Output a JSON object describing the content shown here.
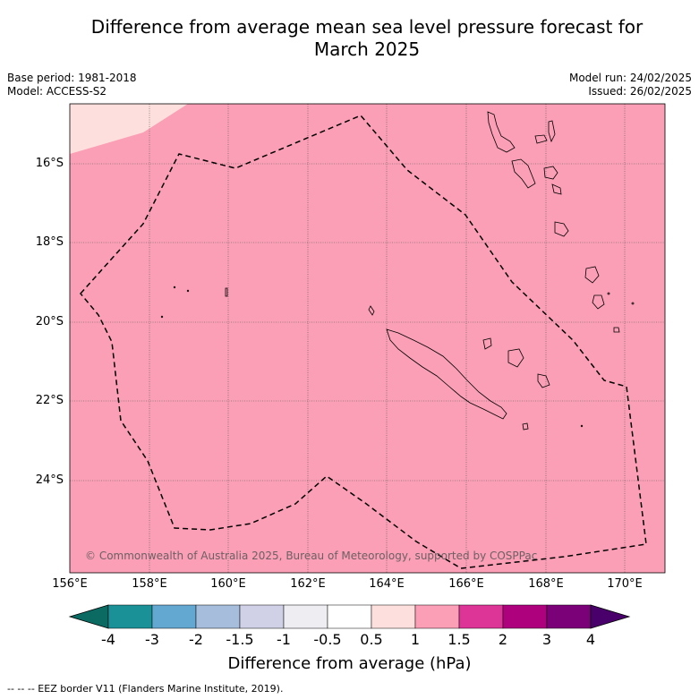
{
  "title_line1": "Difference from average mean sea level pressure forecast for",
  "title_line2": "March 2025",
  "base_period": "Base period: 1981-2018",
  "model": "Model: ACCESS-S2",
  "model_run": "Model run: 24/02/2025",
  "issued": "Issued: 26/02/2025",
  "lat_labels": [
    "16°S",
    "18°S",
    "20°S",
    "22°S",
    "24°S"
  ],
  "lon_labels": [
    "156°E",
    "158°E",
    "160°E",
    "162°E",
    "164°E",
    "166°E",
    "168°E",
    "170°E"
  ],
  "copyright": "© Commonwealth of Australia 2025, Bureau of Meteorology, supported by COSPPac",
  "colorbar": {
    "title": "Difference from average (hPa)",
    "ticks": [
      "-4",
      "-3",
      "-2",
      "-1.5",
      "-1",
      "-0.5",
      "0.5",
      "1",
      "1.5",
      "2",
      "3",
      "4"
    ],
    "colors": [
      "#0b6b63",
      "#1a9197",
      "#63a8d0",
      "#a6bddb",
      "#d0d1e6",
      "#ededf2",
      "#ffffff",
      "#fde0dd",
      "#fa9fb5",
      "#dd3497",
      "#ae017e",
      "#7a0177",
      "#49006a"
    ]
  },
  "map_fill": {
    "main": "#fa9fb5",
    "low": "#fde0dd"
  },
  "legend_note": "--  --  -- EEZ border V11 (Flanders Marine Institute, 2019)."
}
